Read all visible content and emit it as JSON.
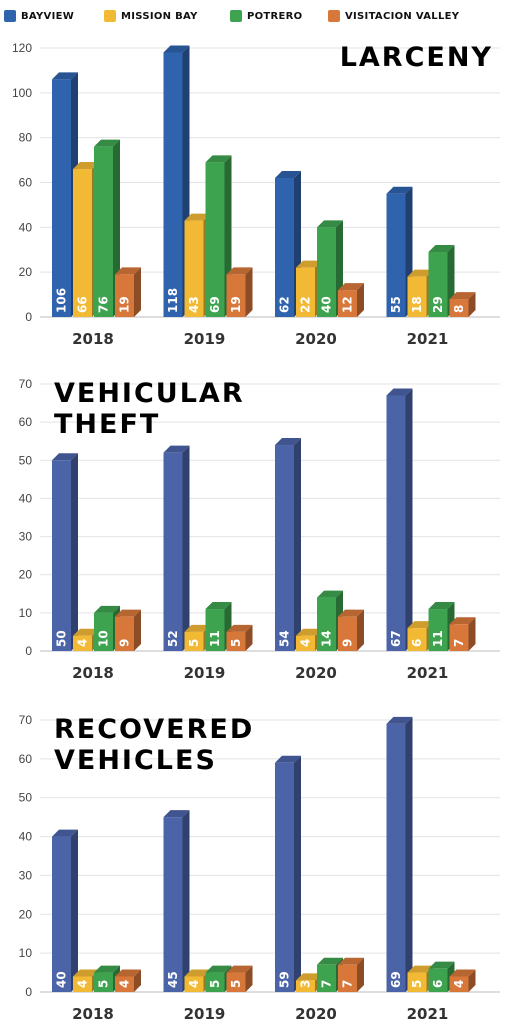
{
  "legend": {
    "series": [
      {
        "name": "BAYVIEW",
        "color": "#2f63ad"
      },
      {
        "name": "MISSION BAY",
        "color": "#f2b935"
      },
      {
        "name": "POTRERO",
        "color": "#3ea34f"
      },
      {
        "name": "VISITACION VALLEY",
        "color": "#d7773a"
      }
    ]
  },
  "chart_data": [
    {
      "type": "bar",
      "title": "LARCENY",
      "categories": [
        "2018",
        "2019",
        "2020",
        "2021"
      ],
      "ylim": [
        0,
        120
      ],
      "yticks": [
        0,
        20,
        40,
        60,
        80,
        100,
        120
      ],
      "grid": true,
      "series": [
        {
          "name": "BAYVIEW",
          "values": [
            106,
            118,
            62,
            55
          ]
        },
        {
          "name": "MISSION BAY",
          "values": [
            66,
            43,
            22,
            18
          ]
        },
        {
          "name": "POTRERO",
          "values": [
            76,
            69,
            40,
            29
          ]
        },
        {
          "name": "VISITACION VALLEY",
          "values": [
            19,
            19,
            12,
            8
          ]
        }
      ]
    },
    {
      "type": "bar",
      "title": "VEHICULAR THEFT",
      "title_lines": [
        "VEHICULAR",
        "THEFT"
      ],
      "categories": [
        "2018",
        "2019",
        "2020",
        "2021"
      ],
      "ylim": [
        0,
        70
      ],
      "yticks": [
        0,
        10,
        20,
        30,
        40,
        50,
        60,
        70
      ],
      "grid": true,
      "series": [
        {
          "name": "BAYVIEW",
          "values": [
            50,
            52,
            54,
            67
          ]
        },
        {
          "name": "MISSION BAY",
          "values": [
            4,
            5,
            4,
            6
          ]
        },
        {
          "name": "POTRERO",
          "values": [
            10,
            11,
            14,
            11
          ]
        },
        {
          "name": "VISITACION VALLEY",
          "values": [
            9,
            5,
            9,
            7
          ]
        }
      ]
    },
    {
      "type": "bar",
      "title": "RECOVERED VEHICLES",
      "title_lines": [
        "RECOVERED",
        "VEHICLES"
      ],
      "categories": [
        "2018",
        "2019",
        "2020",
        "2021"
      ],
      "ylim": [
        0,
        70
      ],
      "yticks": [
        0,
        10,
        20,
        30,
        40,
        50,
        60,
        70
      ],
      "grid": true,
      "series": [
        {
          "name": "BAYVIEW",
          "values": [
            40,
            45,
            59,
            69
          ]
        },
        {
          "name": "MISSION BAY",
          "values": [
            4,
            4,
            3,
            5
          ]
        },
        {
          "name": "POTRERO",
          "values": [
            5,
            5,
            7,
            6
          ]
        },
        {
          "name": "VISITACION VALLEY",
          "values": [
            4,
            5,
            7,
            4
          ]
        }
      ]
    }
  ],
  "colors": {
    "larceny_bayview": "#2f63ad",
    "theft_bayview": "#4b64a8",
    "mission_bay": "#f2b935",
    "potrero": "#3ea34f",
    "visitacion_valley": "#d7773a"
  }
}
